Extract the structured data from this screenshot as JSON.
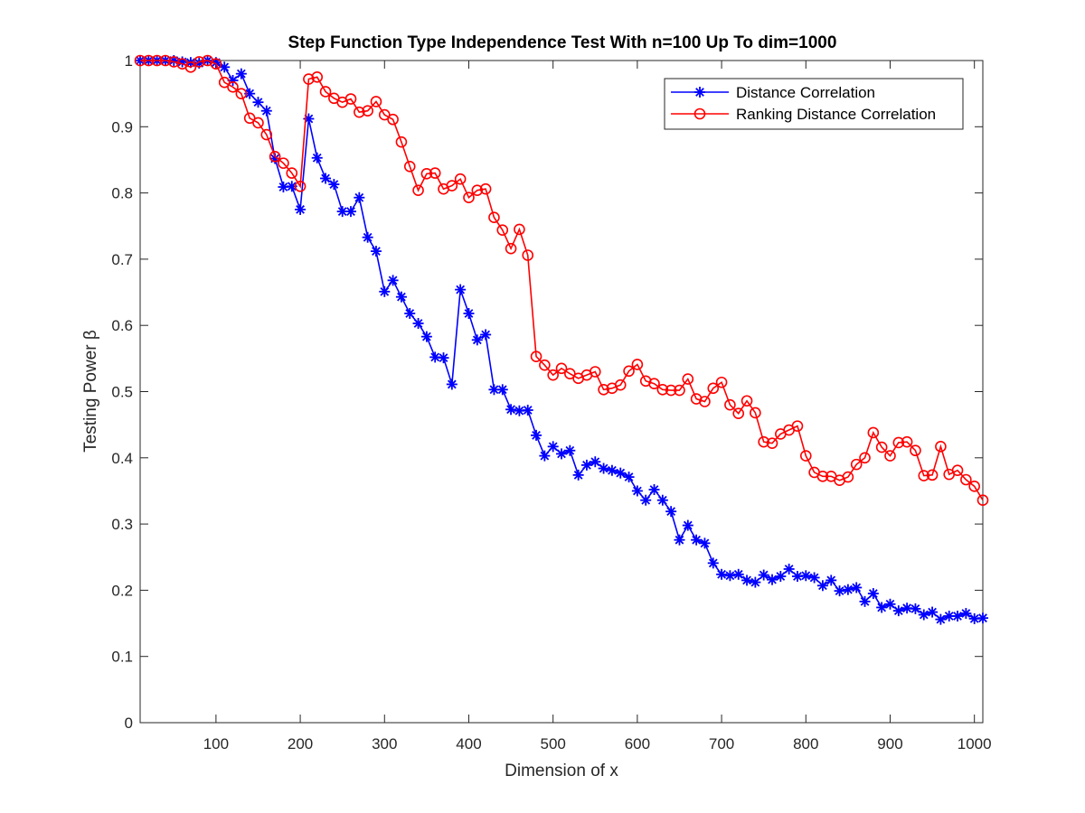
{
  "chart_data": {
    "type": "line",
    "title": "Step Function Type Independence Test With n=100 Up To dim=1000",
    "xlabel": "Dimension of x",
    "ylabel": "Testing Power β",
    "xlim": [
      10,
      1010
    ],
    "ylim": [
      0,
      1
    ],
    "x_ticks": [
      100,
      200,
      300,
      400,
      500,
      600,
      700,
      800,
      900,
      1000
    ],
    "y_ticks": [
      0,
      0.1,
      0.2,
      0.3,
      0.4,
      0.5,
      0.6,
      0.7,
      0.8,
      0.9,
      1
    ],
    "grid": false,
    "legend_position": "top-right",
    "x": [
      10,
      20,
      30,
      40,
      50,
      60,
      70,
      80,
      90,
      100,
      110,
      120,
      130,
      140,
      150,
      160,
      170,
      180,
      190,
      200,
      210,
      220,
      230,
      240,
      250,
      260,
      270,
      280,
      290,
      300,
      310,
      320,
      330,
      340,
      350,
      360,
      370,
      380,
      390,
      400,
      410,
      420,
      430,
      440,
      450,
      460,
      470,
      480,
      490,
      500,
      510,
      520,
      530,
      540,
      550,
      560,
      570,
      580,
      590,
      600,
      610,
      620,
      630,
      640,
      650,
      660,
      670,
      680,
      690,
      700,
      710,
      720,
      730,
      740,
      750,
      760,
      770,
      780,
      790,
      800,
      810,
      820,
      830,
      840,
      850,
      860,
      870,
      880,
      890,
      900,
      910,
      920,
      930,
      940,
      950,
      960,
      970,
      980,
      990,
      1000,
      1010
    ],
    "series": [
      {
        "name": "Distance Correlation",
        "color": "#0000ff",
        "marker": "asterisk",
        "values": [
          1,
          1,
          1,
          1,
          1,
          0.998,
          0.997,
          0.996,
          1,
          0.997,
          0.99,
          0.97,
          0.98,
          0.95,
          0.937,
          0.924,
          0.852,
          0.809,
          0.81,
          0.775,
          0.912,
          0.853,
          0.822,
          0.813,
          0.772,
          0.772,
          0.793,
          0.733,
          0.712,
          0.651,
          0.668,
          0.643,
          0.618,
          0.603,
          0.583,
          0.552,
          0.551,
          0.511,
          0.654,
          0.618,
          0.578,
          0.586,
          0.503,
          0.503,
          0.473,
          0.471,
          0.472,
          0.434,
          0.403,
          0.417,
          0.406,
          0.411,
          0.374,
          0.389,
          0.394,
          0.384,
          0.381,
          0.377,
          0.371,
          0.35,
          0.336,
          0.352,
          0.336,
          0.319,
          0.276,
          0.298,
          0.276,
          0.271,
          0.241,
          0.224,
          0.222,
          0.224,
          0.215,
          0.212,
          0.223,
          0.216,
          0.221,
          0.232,
          0.221,
          0.222,
          0.219,
          0.207,
          0.215,
          0.199,
          0.201,
          0.204,
          0.183,
          0.195,
          0.174,
          0.179,
          0.169,
          0.173,
          0.172,
          0.163,
          0.167,
          0.156,
          0.161,
          0.161,
          0.165,
          0.157,
          0.158
        ]
      },
      {
        "name": "Ranking Distance Correlation",
        "color": "#ff0000",
        "marker": "circle",
        "values": [
          1,
          1,
          1,
          1,
          0.998,
          0.995,
          0.99,
          0.998,
          1,
          0.995,
          0.967,
          0.96,
          0.95,
          0.913,
          0.906,
          0.888,
          0.855,
          0.845,
          0.83,
          0.81,
          0.972,
          0.975,
          0.953,
          0.943,
          0.937,
          0.942,
          0.922,
          0.924,
          0.938,
          0.918,
          0.911,
          0.877,
          0.84,
          0.804,
          0.829,
          0.83,
          0.806,
          0.811,
          0.821,
          0.793,
          0.804,
          0.806,
          0.763,
          0.744,
          0.716,
          0.745,
          0.706,
          0.553,
          0.54,
          0.525,
          0.535,
          0.527,
          0.52,
          0.525,
          0.53,
          0.503,
          0.505,
          0.51,
          0.531,
          0.541,
          0.516,
          0.512,
          0.503,
          0.502,
          0.502,
          0.519,
          0.489,
          0.485,
          0.505,
          0.514,
          0.48,
          0.467,
          0.486,
          0.468,
          0.424,
          0.422,
          0.436,
          0.442,
          0.448,
          0.403,
          0.378,
          0.372,
          0.372,
          0.366,
          0.371,
          0.39,
          0.4,
          0.438,
          0.416,
          0.403,
          0.423,
          0.424,
          0.411,
          0.373,
          0.374,
          0.417,
          0.375,
          0.381,
          0.367,
          0.357,
          0.336
        ]
      }
    ]
  }
}
